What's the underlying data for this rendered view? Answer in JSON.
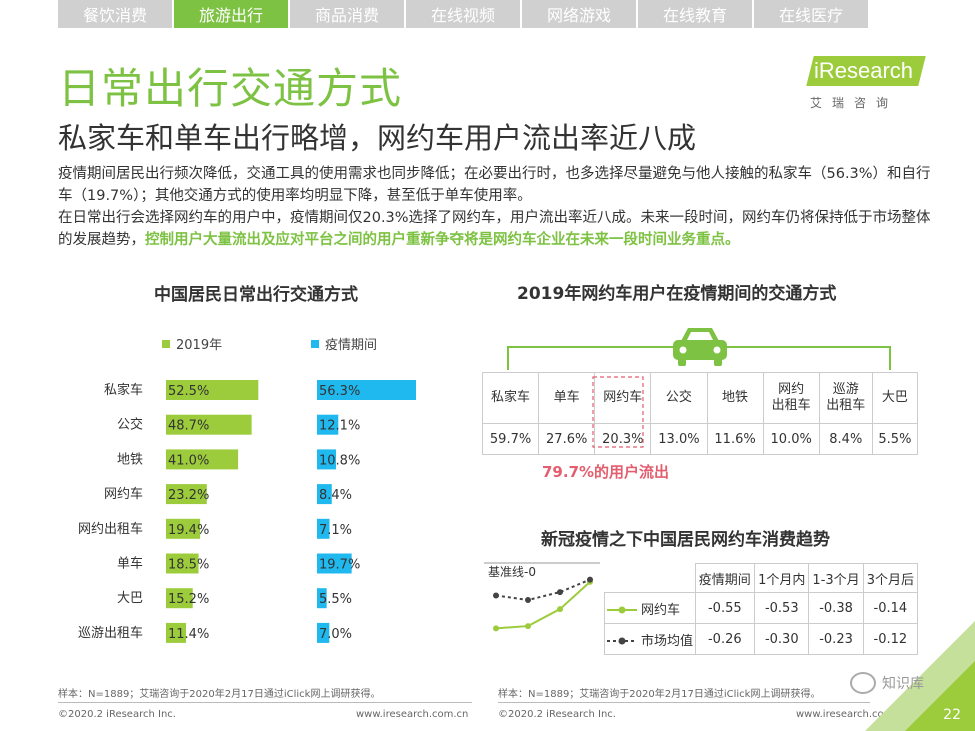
{
  "tabs": [
    {
      "label": "餐饮消费",
      "active": false
    },
    {
      "label": "旅游出行",
      "active": true
    },
    {
      "label": "商品消费",
      "active": false
    },
    {
      "label": "在线视频",
      "active": false
    },
    {
      "label": "网络游戏",
      "active": false
    },
    {
      "label": "在线教育",
      "active": false
    },
    {
      "label": "在线医疗",
      "active": false
    }
  ],
  "logo": {
    "text": "iResearch",
    "sub": "艾瑞咨询"
  },
  "title": "日常出行交通方式",
  "subtitle": "私家车和单车出行略增，网约车用户流出率近八成",
  "para1": "疫情期间居民出行频次降低，交通工具的使用需求也同步降低；在必要出行时，也多选择尽量避免与他人接触的私家车（56.3%）和自行车（19.7%）；其他交通方式的使用率均明显下降，甚至低于单车使用率。",
  "para2a": "在日常出行会选择网约车的用户中，疫情期间仅20.3%选择了网约车，用户流出率近八成。未来一段时间，网约车仍将保持低于市场整体的发展趋势，",
  "para2b": "控制用户大量流出及应对平台之间的用户重新争夺将是网约车企业在未来一段时间业务重点。",
  "colors": {
    "green": "#9ccc3c",
    "blue": "#1fb9ef",
    "accent": "#7dc242",
    "red": "#e35e6e"
  },
  "chart_data": [
    {
      "type": "bar",
      "title": "中国居民日常出行交通方式",
      "categories": [
        "私家车",
        "公交",
        "地铁",
        "网约车",
        "网约出租车",
        "单车",
        "大巴",
        "巡游出租车"
      ],
      "series": [
        {
          "name": "2019年",
          "values": [
            52.5,
            48.7,
            41.0,
            23.2,
            19.4,
            18.5,
            15.2,
            11.4
          ],
          "labels": [
            "52.5%",
            "48.7%",
            "41.0%",
            "23.2%",
            "19.4%",
            "18.5%",
            "15.2%",
            "11.4%"
          ]
        },
        {
          "name": "疫情期间",
          "values": [
            56.3,
            12.1,
            10.8,
            8.4,
            7.1,
            19.7,
            5.5,
            7.0
          ],
          "labels": [
            "56.3%",
            "12.1%",
            "10.8%",
            "8.4%",
            "7.1%",
            "19.7%",
            "5.5%",
            "7.0%"
          ]
        }
      ],
      "orientation": "horizontal",
      "xlim": [
        0,
        56.3
      ]
    },
    {
      "type": "table",
      "title": "2019年网约车用户在疫情期间的交通方式",
      "header": [
        "私家车",
        "单车",
        "网约车",
        "公交",
        "地铁",
        "网约\n出租车",
        "巡游\n出租车",
        "大巴"
      ],
      "values": [
        "59.7%",
        "27.6%",
        "20.3%",
        "13.0%",
        "11.6%",
        "10.0%",
        "8.4%",
        "5.5%"
      ],
      "annotation": "79.7%的用户流出"
    },
    {
      "type": "line",
      "title": "新冠疫情之下中国居民网约车消费趋势",
      "baseline_label": "基准线-0",
      "categories": [
        "疫情期间",
        "1个月内",
        "1-3个月",
        "3个月后"
      ],
      "series": [
        {
          "name": "网约车",
          "values": [
            -0.55,
            -0.53,
            -0.38,
            -0.14
          ],
          "labels": [
            "-0.55",
            "-0.53",
            "-0.38",
            "-0.14"
          ]
        },
        {
          "name": "市场均值",
          "values": [
            -0.26,
            -0.3,
            -0.23,
            -0.12
          ],
          "labels": [
            "-0.26",
            "-0.30",
            "-0.23",
            "-0.12"
          ]
        }
      ],
      "ylim": [
        -0.6,
        0
      ]
    }
  ],
  "footer": {
    "note_left": "样本：N=1889；艾瑞咨询于2020年2月17日通过iClick网上调研获得。",
    "note_right": "样本：N=1889；艾瑞咨询于2020年2月17日通过iClick网上调研获得。",
    "copyright_left": "©2020.2 iResearch Inc.",
    "url_left": "www.iresearch.com.cn",
    "copyright_right": "©2020.2 iResearch Inc.",
    "url_right": "www.iresearch.com.cn",
    "watermark": "知识库",
    "page": "22"
  }
}
